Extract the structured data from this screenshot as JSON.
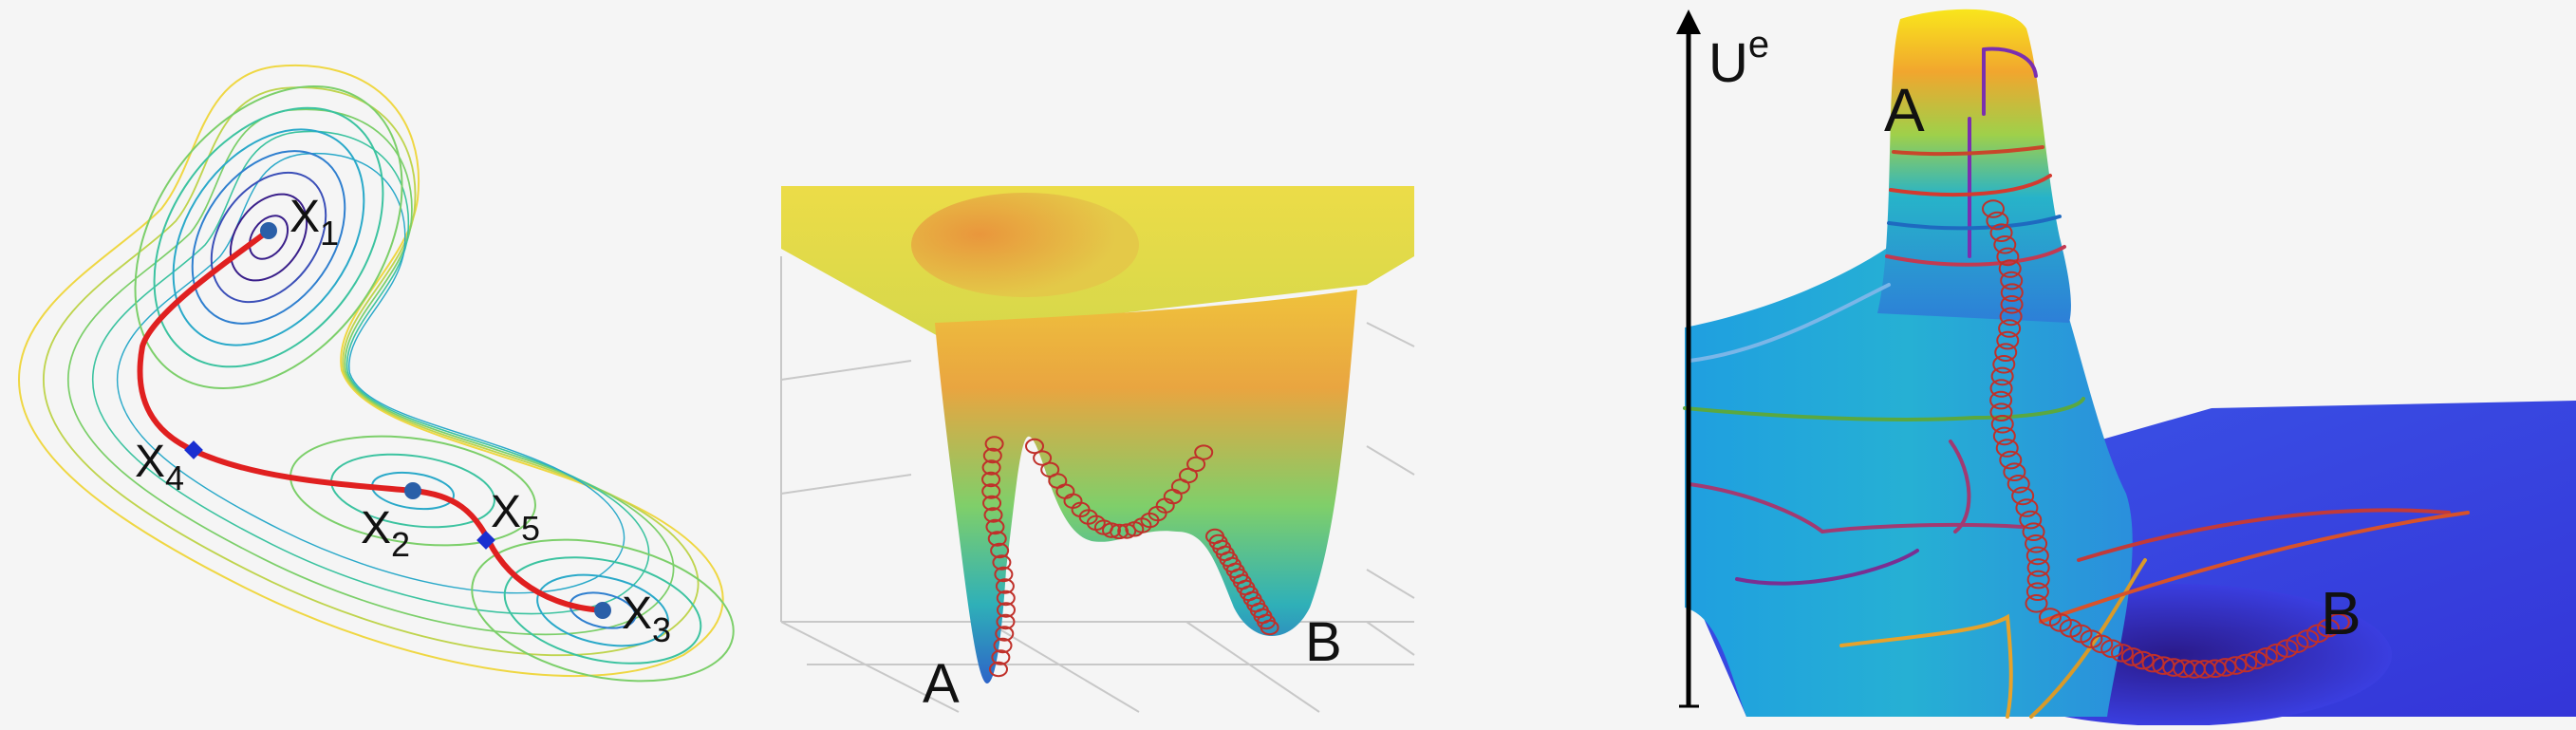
{
  "panel_contour": {
    "labels": [
      {
        "id": "x1",
        "main": "X",
        "sub": "1"
      },
      {
        "id": "x2",
        "main": "X",
        "sub": "2"
      },
      {
        "id": "x3",
        "main": "X",
        "sub": "3"
      },
      {
        "id": "x4",
        "main": "X",
        "sub": "4"
      },
      {
        "id": "x5",
        "main": "X",
        "sub": "5"
      }
    ],
    "colors": {
      "path": "#e02020",
      "minimum_marker": "#2a5fa8",
      "saddle_marker": "#1a2fd0",
      "contour_palette": [
        "#3a1f8a",
        "#3b4fb8",
        "#2f7fcf",
        "#2aa9c9",
        "#3cc3a0",
        "#7ccf6a",
        "#bfd44e",
        "#efd743"
      ]
    }
  },
  "panel_surface": {
    "labels": {
      "a": "A",
      "b": "B"
    },
    "colors": {
      "plateau": "#dcd84a",
      "well_top": "#e9a540",
      "well_mid": "#5bbf8f",
      "well_bottom": "#2d64c8",
      "trajectory": "#c0302a",
      "grid": "#c8c8c8"
    }
  },
  "panel_peak": {
    "labels": {
      "axis_main": "U",
      "axis_sup": "e",
      "a": "A",
      "b": "B"
    },
    "colors": {
      "peak_top": "#f7e21a",
      "peak_mid": "#27b3c9",
      "floor": "#3a3ee0",
      "floor_dark": "#2a1f9a",
      "trajectory": "#c0302a"
    }
  }
}
